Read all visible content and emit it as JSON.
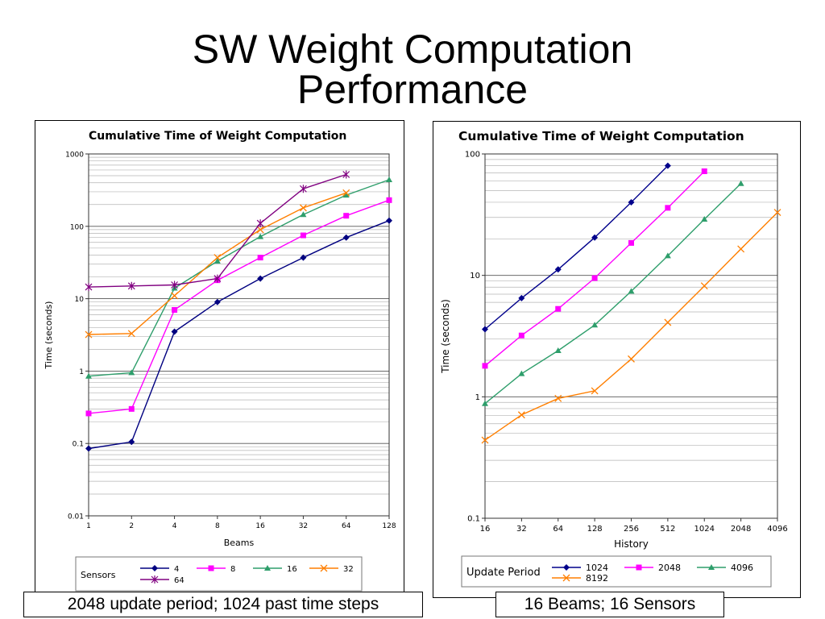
{
  "slide": {
    "title_line1": "SW Weight Computation",
    "title_line2": "Performance",
    "caption_left": "2048 update period; 1024 past time steps",
    "caption_right": "16 Beams; 16 Sensors"
  },
  "chart_data": [
    {
      "type": "line",
      "title": "Cumulative Time of Weight Computation",
      "xlabel": "Beams",
      "ylabel": "Time (seconds)",
      "x_scale": "log2",
      "y_scale": "log10",
      "x": [
        1,
        2,
        4,
        8,
        16,
        32,
        64,
        128
      ],
      "x_tick_labels": [
        "1",
        "2",
        "4",
        "8",
        "16",
        "32",
        "64",
        "128"
      ],
      "ylim": [
        0.01,
        1000
      ],
      "y_ticks": [
        0.01,
        0.1,
        1,
        10,
        100,
        1000
      ],
      "y_tick_labels": [
        "0.01",
        "0.1",
        "1",
        "10",
        "100",
        "1000"
      ],
      "grid": true,
      "legend_title": "Sensors",
      "legend_position": "bottom",
      "series": [
        {
          "name": "4",
          "color": "#000080",
          "marker": "diamond",
          "values": [
            0.085,
            0.105,
            3.5,
            9,
            19,
            37,
            70,
            120
          ]
        },
        {
          "name": "8",
          "color": "#ff00ff",
          "marker": "square",
          "values": [
            0.26,
            0.3,
            7,
            18,
            37,
            75,
            140,
            230
          ]
        },
        {
          "name": "16",
          "color": "#2e9e6b",
          "marker": "triangle",
          "values": [
            0.85,
            0.95,
            14,
            33,
            72,
            145,
            270,
            440
          ]
        },
        {
          "name": "32",
          "color": "#ff7f00",
          "marker": "x",
          "values": [
            3.2,
            3.3,
            11,
            37,
            90,
            180,
            290,
            null
          ]
        },
        {
          "name": "64",
          "color": "#800080",
          "marker": "star",
          "values": [
            14.5,
            15,
            15.5,
            19,
            110,
            330,
            520,
            null
          ]
        }
      ]
    },
    {
      "type": "line",
      "title": "Cumulative Time of Weight Computation",
      "xlabel": "History",
      "ylabel": "Time (seconds)",
      "x_scale": "log2",
      "y_scale": "log10",
      "x": [
        16,
        32,
        64,
        128,
        256,
        512,
        1024,
        2048,
        4096
      ],
      "x_tick_labels": [
        "16",
        "32",
        "64",
        "128",
        "256",
        "512",
        "1024",
        "2048",
        "4096"
      ],
      "ylim": [
        0.1,
        100
      ],
      "y_ticks": [
        0.1,
        1,
        10,
        100
      ],
      "y_tick_labels": [
        "0.1",
        "1",
        "10",
        "100"
      ],
      "grid": true,
      "legend_title": "Update Period",
      "legend_position": "bottom",
      "series": [
        {
          "name": "1024",
          "color": "#00008b",
          "marker": "diamond",
          "values": [
            3.6,
            6.5,
            11.2,
            20.5,
            40,
            80,
            null,
            null,
            null
          ]
        },
        {
          "name": "2048",
          "color": "#ff00ff",
          "marker": "square",
          "values": [
            1.8,
            3.2,
            5.3,
            9.5,
            18.5,
            36,
            72,
            null,
            null
          ]
        },
        {
          "name": "4096",
          "color": "#2e9e6b",
          "marker": "triangle",
          "values": [
            0.88,
            1.55,
            2.4,
            3.9,
            7.4,
            14.5,
            29,
            57,
            null
          ]
        },
        {
          "name": "8192",
          "color": "#ff7f00",
          "marker": "x",
          "values": [
            0.44,
            0.71,
            0.97,
            1.12,
            2.05,
            4.1,
            8.2,
            16.5,
            33
          ]
        }
      ]
    }
  ]
}
